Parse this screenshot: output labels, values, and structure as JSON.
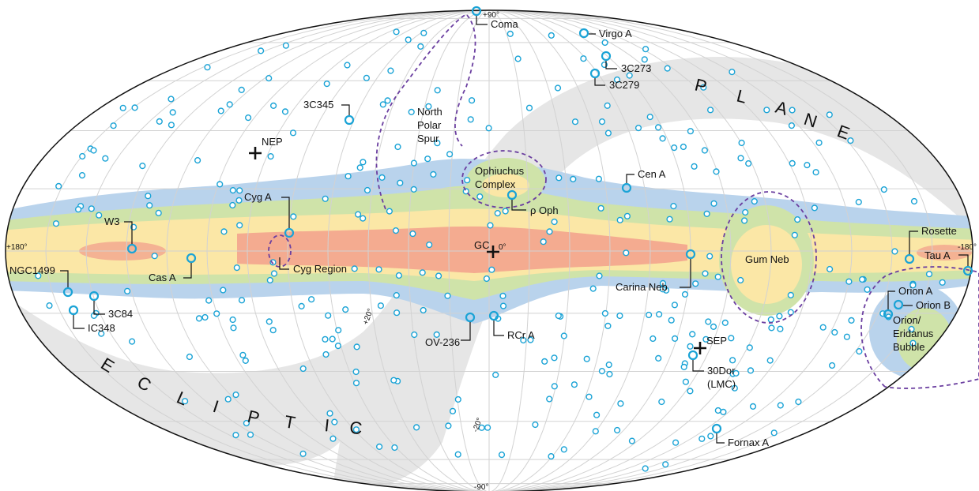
{
  "map": {
    "band_text": {
      "plane": "PLANE",
      "ecliptic": "ECLIPTIC"
    },
    "coords": {
      "north_pole": "+90°",
      "south_pole": "-90°",
      "left_lon": "+180°",
      "right_lon": "-180°",
      "center_lon": "0°",
      "lat_plus20": "+20°",
      "lat_minus20": "-20°"
    },
    "markers": {
      "nep": "NEP",
      "sep": "SEP",
      "gc": "GC"
    },
    "regions": {
      "north_polar_spur": [
        "North",
        "Polar",
        "Spur"
      ],
      "ophiuchus": [
        "Ophiuchus",
        "Complex"
      ],
      "gum": "Gum Neb",
      "cyg_region": "Cyg Region",
      "orion_bubble": [
        "Orion/",
        "Eridanus",
        "Bubble"
      ]
    },
    "sources": {
      "coma": "Coma",
      "virgo_a": "Virgo A",
      "c3c273": "3C273",
      "c3c279": "3C279",
      "c3c345": "3C345",
      "cen_a": "Cen A",
      "rho_oph": "ρ Oph",
      "cyg_a": "Cyg A",
      "w3": "W3",
      "cas_a": "Cas A",
      "ngc1499": "NGC1499",
      "c3c84": "3C84",
      "ic348": "IC348",
      "ov236": "OV-236",
      "rcr_a": "RCr A",
      "carina": "Carina Neb",
      "rosette": "Rosette",
      "tau_a": "Tau A",
      "orion_a": "Orion A",
      "orion_b": "Orion B",
      "dor30": [
        "30Dor",
        "(LMC)"
      ],
      "fornax_a": "Fornax A"
    },
    "colors": {
      "background_sources": "#1aa3d6",
      "ridge_high": "#f2a08c",
      "ridge_mid": "#fbe7a6",
      "ridge_low": "#cfe3a9",
      "diffuse": "#b9d3ec",
      "ecliptic_band": "#e6e6e6",
      "dashed_regions": "#6b3fa0"
    }
  }
}
